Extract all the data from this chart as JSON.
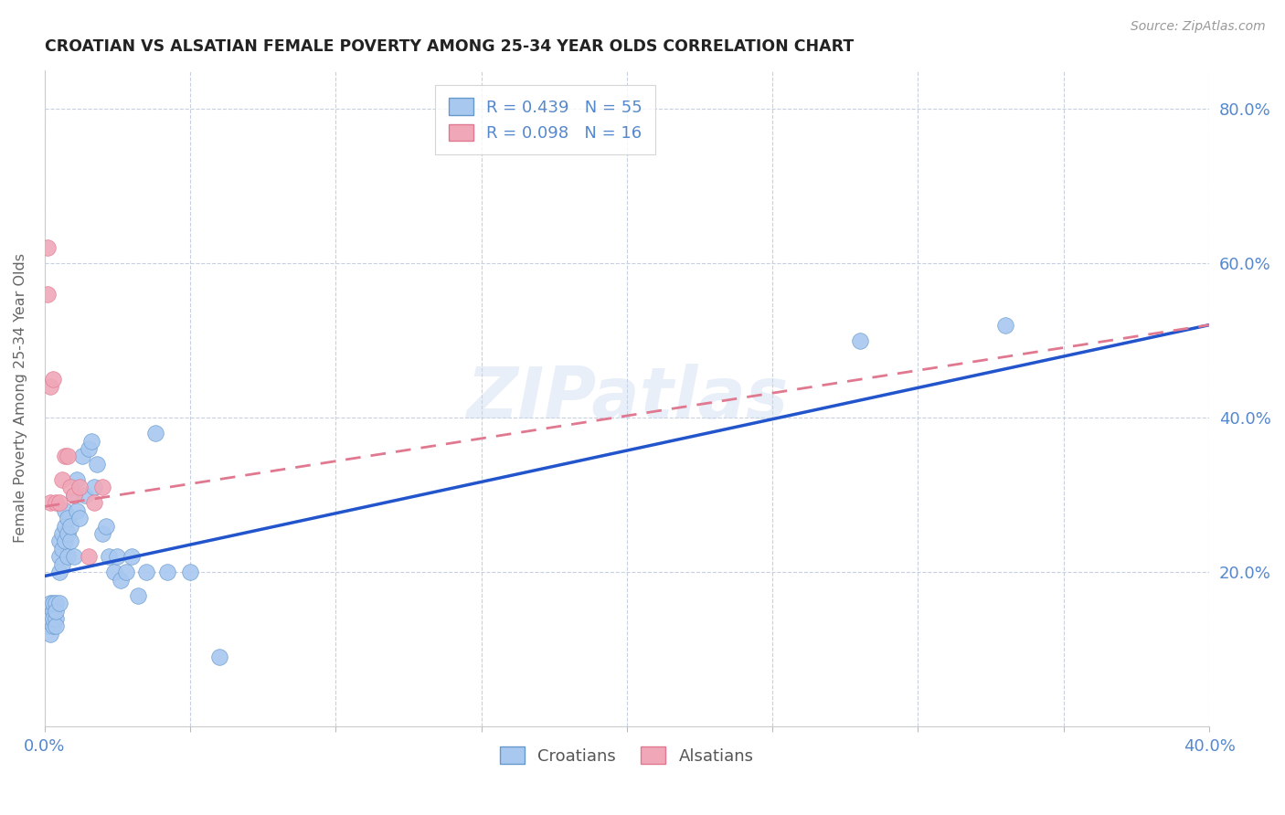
{
  "title": "CROATIAN VS ALSATIAN FEMALE POVERTY AMONG 25-34 YEAR OLDS CORRELATION CHART",
  "source": "Source: ZipAtlas.com",
  "ylabel": "Female Poverty Among 25-34 Year Olds",
  "xlim": [
    0,
    0.4
  ],
  "ylim": [
    0,
    0.85
  ],
  "axis_color": "#5588cc",
  "grid_color": "#c8d0e0",
  "watermark": "ZIPatlas",
  "legend_entries": [
    {
      "label": "R = 0.439   N = 55",
      "color": "#a8c8f0"
    },
    {
      "label": "R = 0.098   N = 16",
      "color": "#f0a8b8"
    }
  ],
  "croatians": {
    "color": "#a8c8f0",
    "edge_color": "#6699cc",
    "trend_color": "#2255cc",
    "x": [
      0.001,
      0.001,
      0.002,
      0.002,
      0.002,
      0.003,
      0.003,
      0.003,
      0.003,
      0.004,
      0.004,
      0.004,
      0.004,
      0.005,
      0.005,
      0.005,
      0.005,
      0.006,
      0.006,
      0.006,
      0.007,
      0.007,
      0.007,
      0.008,
      0.008,
      0.008,
      0.009,
      0.009,
      0.01,
      0.01,
      0.011,
      0.011,
      0.012,
      0.013,
      0.014,
      0.015,
      0.016,
      0.017,
      0.018,
      0.02,
      0.021,
      0.022,
      0.024,
      0.025,
      0.026,
      0.028,
      0.03,
      0.032,
      0.035,
      0.038,
      0.042,
      0.05,
      0.06,
      0.28,
      0.33
    ],
    "y": [
      0.15,
      0.13,
      0.14,
      0.12,
      0.16,
      0.13,
      0.15,
      0.14,
      0.16,
      0.14,
      0.13,
      0.16,
      0.15,
      0.22,
      0.2,
      0.24,
      0.16,
      0.25,
      0.23,
      0.21,
      0.26,
      0.24,
      0.28,
      0.22,
      0.25,
      0.27,
      0.24,
      0.26,
      0.22,
      0.3,
      0.28,
      0.32,
      0.27,
      0.35,
      0.3,
      0.36,
      0.37,
      0.31,
      0.34,
      0.25,
      0.26,
      0.22,
      0.2,
      0.22,
      0.19,
      0.2,
      0.22,
      0.17,
      0.2,
      0.38,
      0.2,
      0.2,
      0.09,
      0.5,
      0.52
    ],
    "trend_x0": 0.0,
    "trend_y0": 0.195,
    "trend_x1": 0.4,
    "trend_y1": 0.52
  },
  "alsatians": {
    "color": "#f0a8b8",
    "edge_color": "#e07890",
    "trend_color": "#e07890",
    "x": [
      0.001,
      0.001,
      0.002,
      0.002,
      0.003,
      0.004,
      0.005,
      0.006,
      0.007,
      0.008,
      0.009,
      0.01,
      0.012,
      0.015,
      0.017,
      0.02
    ],
    "y": [
      0.62,
      0.56,
      0.44,
      0.29,
      0.45,
      0.29,
      0.29,
      0.32,
      0.35,
      0.35,
      0.31,
      0.3,
      0.31,
      0.22,
      0.29,
      0.31
    ],
    "trend_x0": 0.0,
    "trend_y0": 0.285,
    "trend_x1": 0.4,
    "trend_y1": 0.52
  }
}
